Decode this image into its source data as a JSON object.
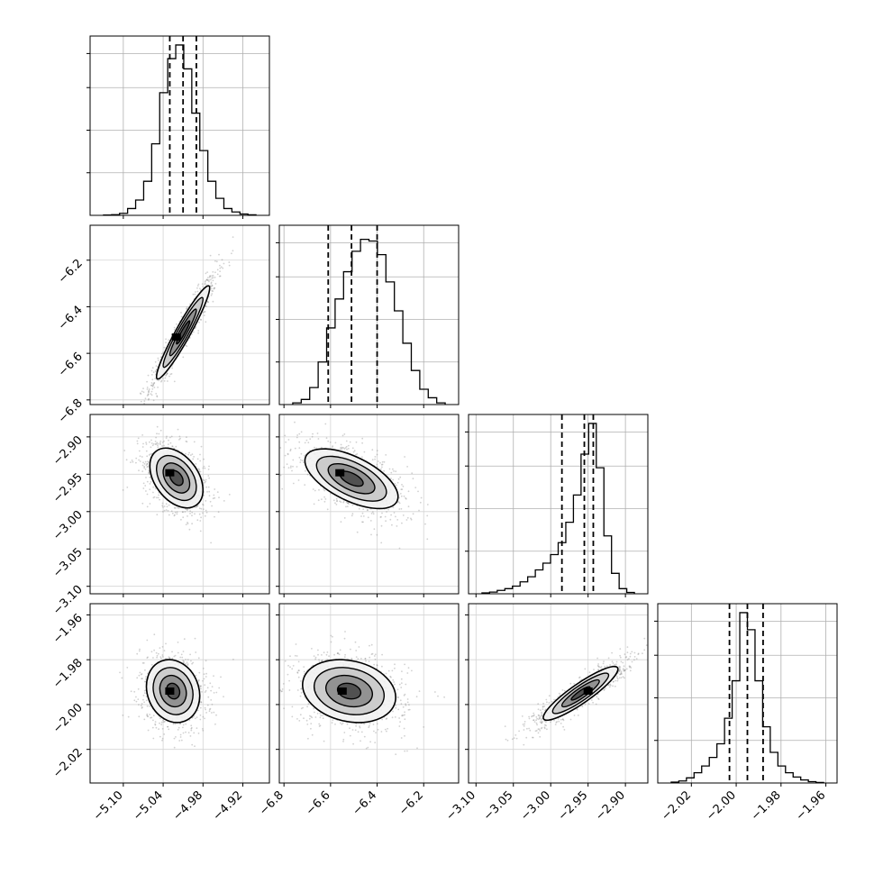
{
  "chart_data": {
    "type": "corner",
    "title": "",
    "parameters": [
      {
        "range": [
          -5.15,
          -4.88
        ],
        "ticks": [
          -5.1,
          -5.04,
          -4.98,
          -4.92
        ],
        "tick_labels": [
          "−5.10",
          "−5.04",
          "−4.98",
          "−4.92"
        ],
        "quantiles": [
          -5.03,
          -5.01,
          -4.99
        ],
        "histogram": [
          0.002,
          0.004,
          0.012,
          0.04,
          0.09,
          0.2,
          0.42,
          0.72,
          0.92,
          1.0,
          0.86,
          0.6,
          0.38,
          0.2,
          0.1,
          0.04,
          0.02,
          0.008,
          0.003
        ]
      },
      {
        "range": [
          -6.82,
          -6.05
        ],
        "ticks": [
          -6.8,
          -6.6,
          -6.4,
          -6.2
        ],
        "tick_labels": [
          "−6.8",
          "−6.6",
          "−6.4",
          "−6.2"
        ],
        "quantiles": [
          -6.61,
          -6.51,
          -6.4
        ],
        "histogram": [
          0.01,
          0.03,
          0.1,
          0.25,
          0.45,
          0.62,
          0.78,
          0.9,
          0.97,
          0.96,
          0.88,
          0.72,
          0.55,
          0.36,
          0.2,
          0.09,
          0.04,
          0.01
        ]
      },
      {
        "range": [
          -3.11,
          -2.87
        ],
        "ticks": [
          -3.1,
          -3.05,
          -3.0,
          -2.95,
          -2.9
        ],
        "tick_labels": [
          "−3.10",
          "−3.05",
          "−3.00",
          "−2.95",
          "−2.90"
        ],
        "quantiles": [
          -2.985,
          -2.955,
          -2.943
        ],
        "histogram": [
          0.005,
          0.01,
          0.02,
          0.03,
          0.045,
          0.07,
          0.1,
          0.14,
          0.18,
          0.23,
          0.3,
          0.42,
          0.58,
          0.82,
          1.0,
          0.74,
          0.34,
          0.12,
          0.03,
          0.008
        ]
      },
      {
        "range": [
          -2.035,
          -1.955
        ],
        "ticks": [
          -2.02,
          -2.0,
          -1.98,
          -1.96
        ],
        "tick_labels": [
          "−2.02",
          "−2.00",
          "−1.98",
          "−1.96"
        ],
        "quantiles": [
          -2.003,
          -1.995,
          -1.988
        ],
        "histogram": [
          0.005,
          0.012,
          0.03,
          0.06,
          0.1,
          0.15,
          0.23,
          0.38,
          0.6,
          1.0,
          0.9,
          0.6,
          0.33,
          0.18,
          0.1,
          0.06,
          0.035,
          0.018,
          0.008,
          0.003
        ]
      }
    ],
    "pairs": [
      {
        "x": 0,
        "y": 1,
        "mean": [
          -5.01,
          -6.51
        ],
        "sd": [
          0.02,
          0.1
        ],
        "rho": 0.95,
        "peak": [
          -5.02,
          -6.53
        ]
      },
      {
        "x": 0,
        "y": 2,
        "mean": [
          -5.02,
          -2.955
        ],
        "sd": [
          0.02,
          0.02
        ],
        "rho": -0.4,
        "peak": [
          -5.03,
          -2.948
        ]
      },
      {
        "x": 0,
        "y": 3,
        "mean": [
          -5.025,
          -1.994
        ],
        "sd": [
          0.02,
          0.007
        ],
        "rho": -0.15,
        "peak": [
          -5.03,
          -1.994
        ]
      },
      {
        "x": 1,
        "y": 2,
        "mean": [
          -6.51,
          -2.956
        ],
        "sd": [
          0.1,
          0.02
        ],
        "rho": -0.6,
        "peak": [
          -6.56,
          -2.948
        ]
      },
      {
        "x": 1,
        "y": 3,
        "mean": [
          -6.52,
          -1.994
        ],
        "sd": [
          0.1,
          0.007
        ],
        "rho": -0.2,
        "peak": [
          -6.55,
          -1.994
        ]
      },
      {
        "x": 2,
        "y": 3,
        "mean": [
          -2.96,
          -1.995
        ],
        "sd": [
          0.025,
          0.006
        ],
        "rho": 0.9,
        "peak": [
          -2.95,
          -1.994
        ]
      }
    ],
    "contour_levels": [
      0.118,
      0.393,
      0.675,
      0.865
    ],
    "grid": true,
    "legend": "none"
  }
}
